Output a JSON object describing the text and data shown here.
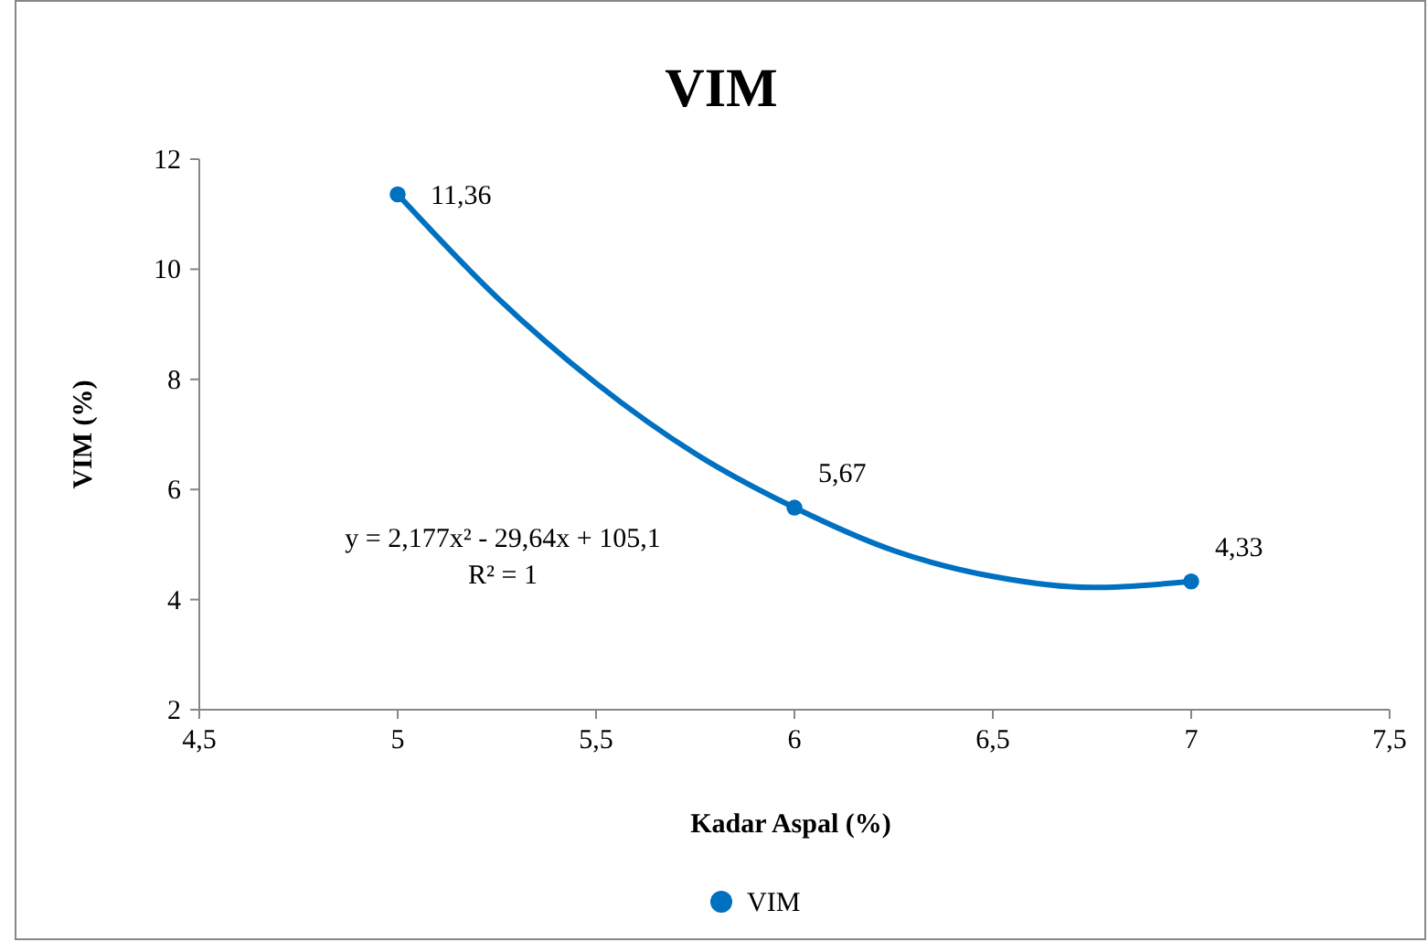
{
  "chart_data": {
    "type": "scatter",
    "title": "VIM",
    "xlabel": "Kadar Aspal (%)",
    "ylabel": "VIM (%)",
    "xlim": [
      4.5,
      7.5
    ],
    "xticks": [
      {
        "value": 4.5,
        "label": "4,5"
      },
      5,
      {
        "value": 5.5,
        "label": "5,5"
      },
      6,
      {
        "value": 6.5,
        "label": "6,5"
      },
      7,
      {
        "value": 7.5,
        "label": "7,5"
      }
    ],
    "ylim": [
      2,
      12
    ],
    "yticks": [
      2,
      4,
      6,
      8,
      10,
      12
    ],
    "grid": false,
    "legend": "bottom",
    "series": [
      {
        "name": "VIM",
        "marker": "circle",
        "color": "#0070c0",
        "x": [
          5,
          6,
          7
        ],
        "values": [
          11.36,
          5.67,
          4.33
        ],
        "value_labels": [
          "11,36",
          "5,67",
          "4,33"
        ]
      },
      {
        "type": "line",
        "color": "#0070c0",
        "line_style": "solid",
        "x": [
          5,
          5.25,
          5.5,
          5.75,
          6,
          6.25,
          6.5,
          6.75,
          7
        ],
        "values": [
          11.36,
          9.49,
          7.93,
          6.65,
          5.67,
          4.89,
          4.42,
          4.22,
          4.33
        ]
      }
    ],
    "annotations": [
      "y = 2,177x² - 29,64x + 105,1",
      "R² = 1"
    ]
  }
}
